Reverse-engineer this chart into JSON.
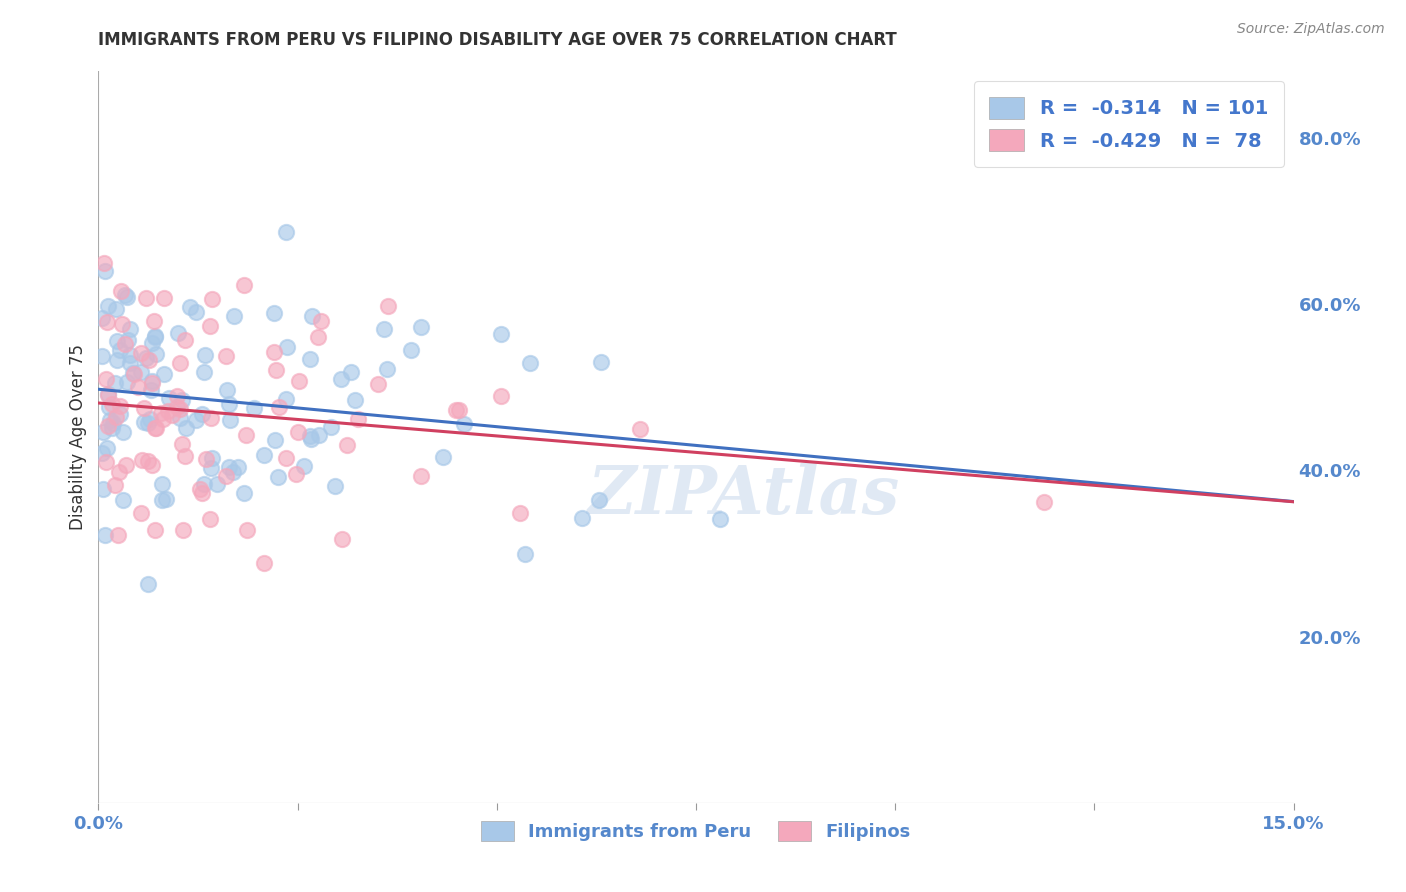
{
  "title": "IMMIGRANTS FROM PERU VS FILIPINO DISABILITY AGE OVER 75 CORRELATION CHART",
  "source": "Source: ZipAtlas.com",
  "ylabel": "Disability Age Over 75",
  "right_yticks": [
    "80.0%",
    "60.0%",
    "40.0%",
    "20.0%"
  ],
  "right_ytick_vals": [
    0.8,
    0.6,
    0.4,
    0.2
  ],
  "xlim": [
    0.0,
    0.15
  ],
  "ylim": [
    0.0,
    0.88
  ],
  "legend_blue_r": "-0.314",
  "legend_blue_n": "101",
  "legend_pink_r": "-0.429",
  "legend_pink_n": "78",
  "blue_color": "#a8c8e8",
  "pink_color": "#f4a8bc",
  "trendline_blue": "#4070c0",
  "trendline_pink": "#d04060",
  "background_color": "#ffffff",
  "grid_color": "#cccccc",
  "axis_text_color": "#5588cc",
  "label_color": "#333333",
  "title_color": "#333333",
  "watermark": "ZIPAtlas",
  "legend_text_color": "#4477cc"
}
